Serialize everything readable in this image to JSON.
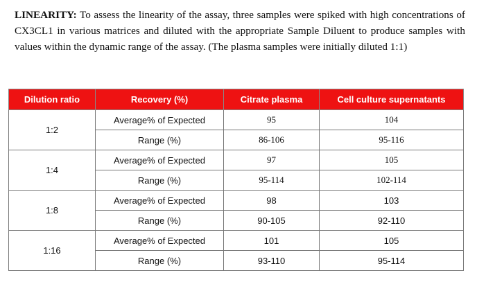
{
  "intro": {
    "lead": "LINEARITY:",
    "text": "To assess the linearity of the assay, three samples were spiked with high concentrations of CX3CL1 in various matrices and diluted with the appropriate Sample Diluent to produce samples with values within the dynamic range of the assay. (The plasma samples were initially diluted 1:1)"
  },
  "table": {
    "headers": [
      "Dilution ratio",
      "Recovery (%)",
      "Citrate plasma",
      "Cell culture supernatants"
    ],
    "groups": [
      {
        "dilution": "1:2",
        "rows": [
          {
            "label": "Average% of Expected",
            "citrate": "95",
            "supernatant": "104"
          },
          {
            "label": "Range (%)",
            "citrate": "86-106",
            "supernatant": "95-116"
          }
        ]
      },
      {
        "dilution": "1:4",
        "rows": [
          {
            "label": "Average% of Expected",
            "citrate": "97",
            "supernatant": "105"
          },
          {
            "label": "Range (%)",
            "citrate": "95-114",
            "supernatant": "102-114"
          }
        ]
      },
      {
        "dilution": "1:8",
        "rows": [
          {
            "label": "Average% of Expected",
            "citrate": "98",
            "supernatant": "103"
          },
          {
            "label": "Range (%)",
            "citrate": "90-105",
            "supernatant": "92-110"
          }
        ]
      },
      {
        "dilution": "1:16",
        "rows": [
          {
            "label": "Average% of Expected",
            "citrate": "101",
            "supernatant": "105"
          },
          {
            "label": "Range (%)",
            "citrate": "93-110",
            "supernatant": "95-114"
          }
        ]
      }
    ]
  },
  "colors": {
    "header_bg": "#ee1212",
    "header_text": "#ffffff",
    "border": "#777777"
  }
}
